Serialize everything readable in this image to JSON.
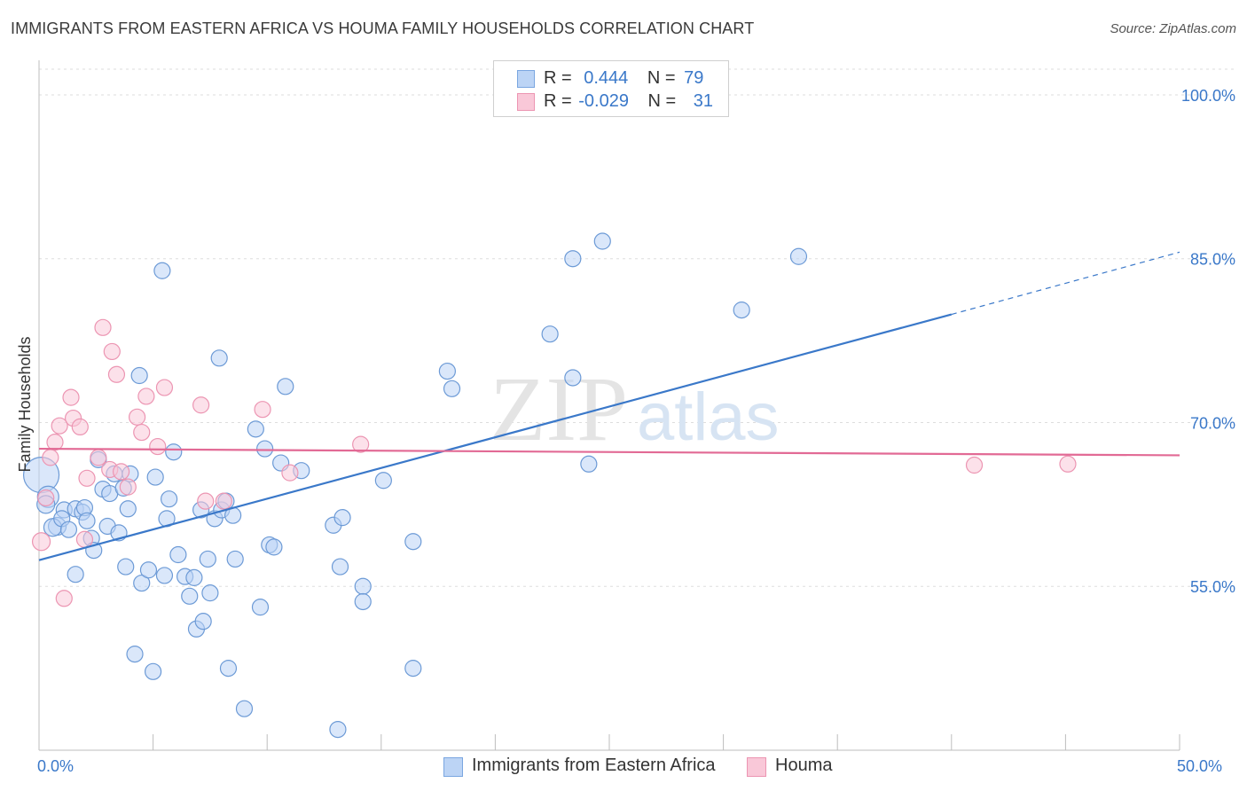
{
  "title": "IMMIGRANTS FROM EASTERN AFRICA VS HOUMA FAMILY HOUSEHOLDS CORRELATION CHART",
  "source": "Source: ZipAtlas.com",
  "watermark": {
    "zip": "ZIP",
    "atlas": "atlas"
  },
  "legend": {
    "r_label": "R =",
    "n_label": "N =",
    "rows": [
      {
        "r": "0.444",
        "n": "79",
        "swatch_fill": "#bcd4f5",
        "swatch_stroke": "#7aa6e0"
      },
      {
        "r": "-0.029",
        "n": "31",
        "swatch_fill": "#f9c8d8",
        "swatch_stroke": "#ec95b2"
      }
    ]
  },
  "chart_data": {
    "type": "scatter",
    "title": "IMMIGRANTS FROM EASTERN AFRICA VS HOUMA FAMILY HOUSEHOLDS CORRELATION CHART",
    "xlabel": "",
    "ylabel": "Family Households",
    "xlim": [
      0,
      50
    ],
    "ylim": [
      40,
      103
    ],
    "x_tick_labels": [
      {
        "value": 0,
        "label": "0.0%"
      },
      {
        "value": 50,
        "label": "50.0%"
      }
    ],
    "x_minor_ticks": [
      0,
      5,
      10,
      15,
      20,
      25,
      30,
      35,
      40,
      45,
      50
    ],
    "y_ticks": [
      {
        "value": 100,
        "label": "100.0%"
      },
      {
        "value": 85,
        "label": "85.0%"
      },
      {
        "value": 70,
        "label": "70.0%"
      },
      {
        "value": 55,
        "label": "55.0%"
      }
    ],
    "grid": true,
    "legend_position": "top-center",
    "series": [
      {
        "name": "Immigrants from Eastern Africa",
        "color": "#3a78c9",
        "fill": "#bcd4f5",
        "stroke": "#6c9ad6",
        "trend": {
          "x0": 0,
          "y0": 57.4,
          "x1": 40,
          "y1": 79.9,
          "dash_to": 50,
          "dash_y": 85.6
        },
        "points": [
          [
            0.1,
            65.2,
            20
          ],
          [
            0.4,
            63.2,
            12
          ],
          [
            0.3,
            62.5,
            10
          ],
          [
            0.8,
            60.5,
            10
          ],
          [
            0.6,
            60.4,
            10
          ],
          [
            1.1,
            62.0,
            9
          ],
          [
            1.0,
            61.2,
            9
          ],
          [
            1.3,
            60.2,
            9
          ],
          [
            1.6,
            62.1,
            9
          ],
          [
            1.9,
            61.8,
            9
          ],
          [
            2.0,
            62.2,
            9
          ],
          [
            2.1,
            61.0,
            9
          ],
          [
            2.3,
            59.4,
            9
          ],
          [
            2.4,
            58.3,
            9
          ],
          [
            1.6,
            56.1,
            9
          ],
          [
            2.6,
            66.6,
            9
          ],
          [
            2.8,
            63.9,
            9
          ],
          [
            3.1,
            63.5,
            9
          ],
          [
            3.0,
            60.5,
            9
          ],
          [
            3.5,
            59.9,
            9
          ],
          [
            3.3,
            65.3,
            9
          ],
          [
            3.7,
            64.0,
            9
          ],
          [
            4.0,
            65.3,
            9
          ],
          [
            3.9,
            62.1,
            9
          ],
          [
            3.8,
            56.8,
            9
          ],
          [
            4.4,
            74.3,
            9
          ],
          [
            4.5,
            55.3,
            9
          ],
          [
            4.8,
            56.5,
            9
          ],
          [
            4.2,
            48.8,
            9
          ],
          [
            5.0,
            47.2,
            9
          ],
          [
            5.1,
            65.0,
            9
          ],
          [
            5.4,
            83.9,
            9
          ],
          [
            5.5,
            56.0,
            9
          ],
          [
            5.6,
            61.2,
            9
          ],
          [
            5.7,
            63.0,
            9
          ],
          [
            5.9,
            67.3,
            9
          ],
          [
            6.1,
            57.9,
            9
          ],
          [
            6.4,
            55.9,
            9
          ],
          [
            6.6,
            54.1,
            9
          ],
          [
            6.8,
            55.8,
            9
          ],
          [
            6.9,
            51.1,
            9
          ],
          [
            7.2,
            51.8,
            9
          ],
          [
            7.1,
            62.0,
            9
          ],
          [
            7.4,
            57.5,
            9
          ],
          [
            7.5,
            54.4,
            9
          ],
          [
            7.7,
            61.2,
            9
          ],
          [
            7.9,
            75.9,
            9
          ],
          [
            8.0,
            62.0,
            9
          ],
          [
            8.2,
            62.8,
            9
          ],
          [
            8.3,
            47.5,
            9
          ],
          [
            8.5,
            61.5,
            9
          ],
          [
            8.6,
            57.5,
            9
          ],
          [
            9.0,
            43.8,
            9
          ],
          [
            9.5,
            69.4,
            9
          ],
          [
            9.7,
            53.1,
            9
          ],
          [
            9.9,
            67.6,
            9
          ],
          [
            10.1,
            58.8,
            9
          ],
          [
            10.3,
            58.6,
            9
          ],
          [
            10.6,
            66.3,
            9
          ],
          [
            10.8,
            73.3,
            9
          ],
          [
            11.5,
            65.6,
            9
          ],
          [
            12.9,
            60.6,
            9
          ],
          [
            13.1,
            41.9,
            9
          ],
          [
            13.3,
            61.3,
            9
          ],
          [
            13.2,
            56.8,
            9
          ],
          [
            14.2,
            55.0,
            9
          ],
          [
            14.2,
            53.6,
            9
          ],
          [
            15.1,
            64.7,
            9
          ],
          [
            16.4,
            59.1,
            9
          ],
          [
            16.4,
            47.5,
            9
          ],
          [
            17.9,
            74.7,
            9
          ],
          [
            18.1,
            73.1,
            9
          ],
          [
            22.4,
            78.1,
            9
          ],
          [
            23.4,
            74.1,
            9
          ],
          [
            23.4,
            85.0,
            9
          ],
          [
            24.1,
            66.2,
            9
          ],
          [
            24.7,
            86.6,
            9
          ],
          [
            30.8,
            80.3,
            9
          ],
          [
            33.3,
            85.2,
            9
          ]
        ]
      },
      {
        "name": "Houma",
        "color": "#e26a95",
        "fill": "#f9c8d8",
        "stroke": "#ec95b2",
        "trend": {
          "x0": 0,
          "y0": 67.6,
          "x1": 50,
          "y1": 67.0
        },
        "points": [
          [
            0.1,
            59.1,
            10
          ],
          [
            0.3,
            63.1,
            9
          ],
          [
            0.5,
            66.8,
            9
          ],
          [
            0.7,
            68.2,
            9
          ],
          [
            0.9,
            69.7,
            9
          ],
          [
            1.1,
            53.9,
            9
          ],
          [
            1.4,
            72.3,
            9
          ],
          [
            1.5,
            70.4,
            9
          ],
          [
            1.8,
            69.6,
            9
          ],
          [
            2.1,
            64.9,
            9
          ],
          [
            2.0,
            59.3,
            9
          ],
          [
            2.6,
            66.8,
            9
          ],
          [
            2.8,
            78.7,
            9
          ],
          [
            3.1,
            65.7,
            9
          ],
          [
            3.2,
            76.5,
            9
          ],
          [
            3.4,
            74.4,
            9
          ],
          [
            3.6,
            65.5,
            9
          ],
          [
            3.9,
            64.1,
            9
          ],
          [
            4.3,
            70.5,
            9
          ],
          [
            4.5,
            69.1,
            9
          ],
          [
            4.7,
            72.4,
            9
          ],
          [
            5.2,
            67.8,
            9
          ],
          [
            5.5,
            73.2,
            9
          ],
          [
            7.1,
            71.6,
            9
          ],
          [
            7.3,
            62.8,
            9
          ],
          [
            8.1,
            62.8,
            9
          ],
          [
            9.8,
            71.2,
            9
          ],
          [
            11.0,
            65.4,
            9
          ],
          [
            14.1,
            68.0,
            9
          ],
          [
            41.0,
            66.1,
            9
          ],
          [
            45.1,
            66.2,
            9
          ]
        ]
      }
    ]
  }
}
